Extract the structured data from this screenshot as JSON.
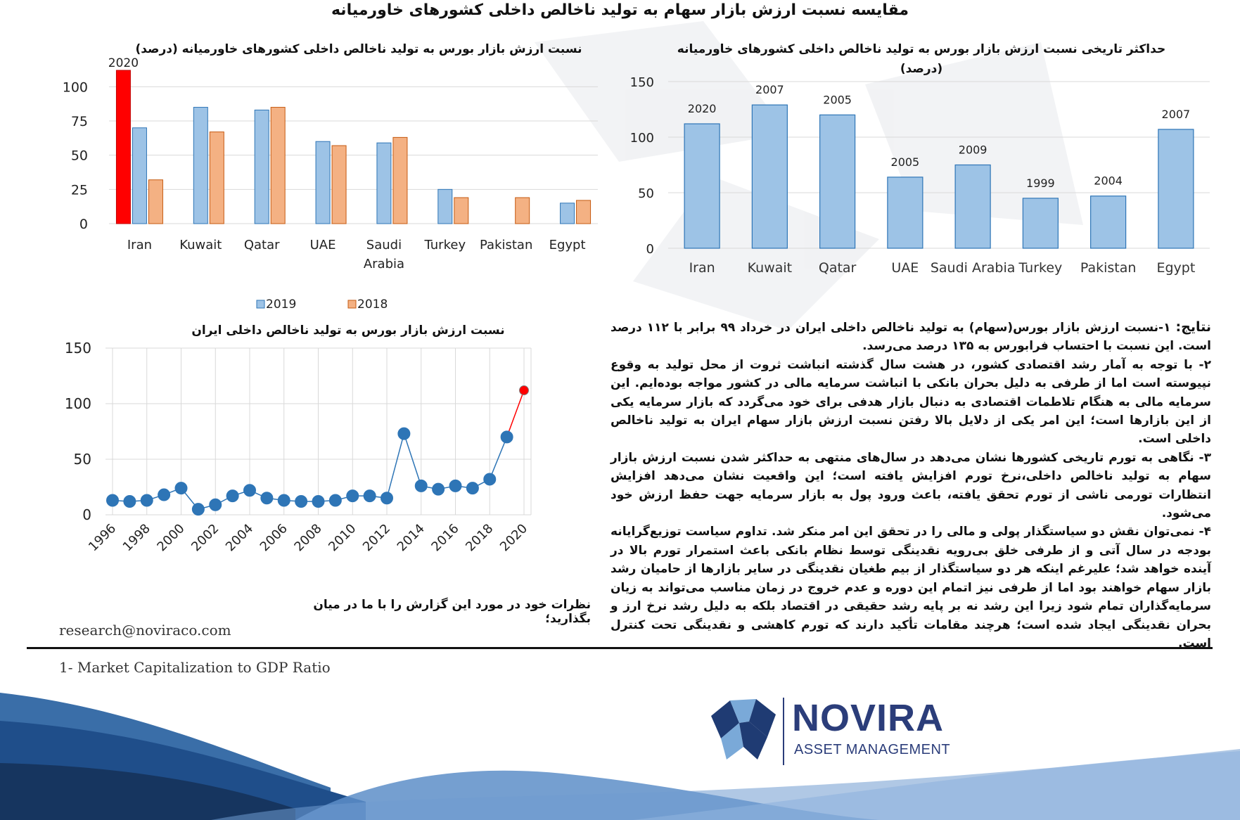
{
  "page_title": "مقایسه نسبت ارزش بازار سهام به تولید ناخالص داخلی کشورهای خاورمیانه",
  "chart_data": [
    {
      "type": "bar",
      "title": "نسبت ارزش بازار بورس به تولید ناخالص داخلی کشورهای خاورمیانه (درصد)",
      "categories": [
        "Iran",
        "Kuwait",
        "Qatar",
        "UAE",
        "Saudi Arabia",
        "Turkey",
        "Pakistan",
        "Egypt"
      ],
      "category_lines": [
        [
          "Iran"
        ],
        [
          "Kuwait"
        ],
        [
          "Qatar"
        ],
        [
          "UAE"
        ],
        [
          "Saudi",
          "Arabia"
        ],
        [
          "Turkey"
        ],
        [
          "Pakistan"
        ],
        [
          "Egypt"
        ]
      ],
      "series": [
        {
          "name": "2020",
          "values": [
            112,
            null,
            null,
            null,
            null,
            null,
            null,
            null
          ],
          "color": "#ff0000"
        },
        {
          "name": "2019",
          "values": [
            70,
            85,
            83,
            60,
            59,
            25,
            null,
            15
          ],
          "color": "#9dc3e6"
        },
        {
          "name": "2018",
          "values": [
            32,
            67,
            85,
            57,
            63,
            19,
            19,
            17
          ],
          "color": "#f4b183"
        }
      ],
      "ylim": [
        0,
        112
      ],
      "yticks": [
        0,
        25,
        50,
        75,
        100
      ],
      "legend": [
        "2019",
        "2018"
      ],
      "legend_position": "bottom",
      "grid": true
    },
    {
      "type": "bar",
      "title": [
        "حداکثر تاریخی نسبت ارزش بازار بورس به تولید ناخالص داخلی کشورهای خاورمیانه",
        "(درصد)"
      ],
      "categories": [
        "Iran",
        "Kuwait",
        "Qatar",
        "UAE",
        "Saudi Arabia",
        "Turkey",
        "Pakistan",
        "Egypt"
      ],
      "values": [
        112,
        129,
        120,
        64,
        75,
        45,
        47,
        107
      ],
      "data_labels": [
        "2020",
        "2007",
        "2005",
        "2005",
        "2009",
        "1999",
        "2004",
        "2007"
      ],
      "ylim": [
        0,
        150
      ],
      "yticks": [
        0,
        50,
        100,
        150
      ],
      "color": "#9dc3e6",
      "grid": true
    },
    {
      "type": "line",
      "title": "نسبت ارزش بازار بورس به تولید ناخالص داخلی ایران",
      "x": [
        1996,
        1997,
        1998,
        1999,
        2000,
        2001,
        2002,
        2003,
        2004,
        2005,
        2006,
        2007,
        2008,
        2009,
        2010,
        2011,
        2012,
        2013,
        2014,
        2015,
        2016,
        2017,
        2018,
        2019,
        2020
      ],
      "values": [
        13,
        12,
        13,
        18,
        24,
        5,
        9,
        17,
        22,
        15,
        13,
        12,
        12,
        13,
        17,
        17,
        15,
        73,
        26,
        23,
        26,
        24,
        32,
        70,
        112
      ],
      "xticks": [
        1996,
        1998,
        2000,
        2002,
        2004,
        2006,
        2008,
        2010,
        2012,
        2014,
        2016,
        2018,
        2020
      ],
      "ylim": [
        0,
        150
      ],
      "yticks": [
        0,
        50,
        100,
        150
      ],
      "highlight_last_color": "#ff0000",
      "color": "#2e75b6",
      "grid": true
    }
  ],
  "findings": {
    "lead": "نتایج:",
    "paragraphs": [
      "۱-نسبت ارزش بازار بورس(سهام) به تولید ناخالص داخلی ایران در خرداد ۹۹ برابر با ۱۱۲ درصد است. این نسبت با احتساب فرابورس به ۱۳۵ درصد می‌رسد.",
      "۲- با توجه به آمار رشد اقتصادی کشور، در هشت سال گذشته انباشت ثروت از محل تولید به وقوع نپیوسته است اما از طرفی به دلیل بحران بانکی با انباشت سرمایه مالی در کشور مواجه بوده‌ایم. این سرمایه مالی به هنگام تلاطمات اقتصادی به دنبال بازار هدفی برای خود می‌گردد که بازار سرمایه یکی از این بازارها است؛ این امر یکی از دلایل بالا رفتن نسبت ارزش بازار سهام ایران به تولید ناخالص داخلی است.",
      "۳- نگاهی به تورم تاریخی کشورها نشان می‌دهد در سال‌های منتهی به حداکثر شدن نسبت ارزش بازار سهام به تولید ناخالص داخلی،نرخ تورم افزایش یافته است؛ این واقعیت نشان می‌دهد افزایش انتظارات تورمی ناشی از تورم تحقق یافته، باعث ورود پول به بازار سرمایه جهت حفظ ارزش خود می‌شود.",
      "۴- نمی‌توان نقش دو سیاستگذار پولی و مالی را در تحقق این امر منکر شد. تداوم سیاست توزیع‌گرایانه بودجه در سال آتی و از طرفی خلق بی‌رویه نقدینگی توسط نظام بانکی باعث استمرار تورم بالا در آینده خواهد شد؛ علیرغم اینکه هر دو سیاستگذار از بیم طغیان نقدینگی در سایر بازارها از حامیان رشد بازار سهام خواهند بود اما از طرفی نیز اتمام این دوره و عدم خروج در زمان مناسب می‌تواند به زیان سرمایه‌گذاران تمام شود زیرا این رشد نه بر پایه رشد حقیقی در اقتصاد بلکه به دلیل رشد نرخ ارز و بحران نقدینگی ایجاد شده است؛ هرچند مقامات تأکید دارند که تورم کاهشی و نقدینگی تحت کنترل است."
    ]
  },
  "feedback_line": "نظرات خود در مورد این گزارش را با ما در میان بگذارید؛",
  "email": "research@noviraco.com",
  "footnote": "1- Market Capitalization to GDP Ratio",
  "brand": {
    "name": "NOVIRA",
    "subtitle": "ASSET MANAGEMENT",
    "color": "#2b3d7a"
  },
  "watermark": {
    "text": "NOVIRA ASSET MANAGEMENT"
  }
}
